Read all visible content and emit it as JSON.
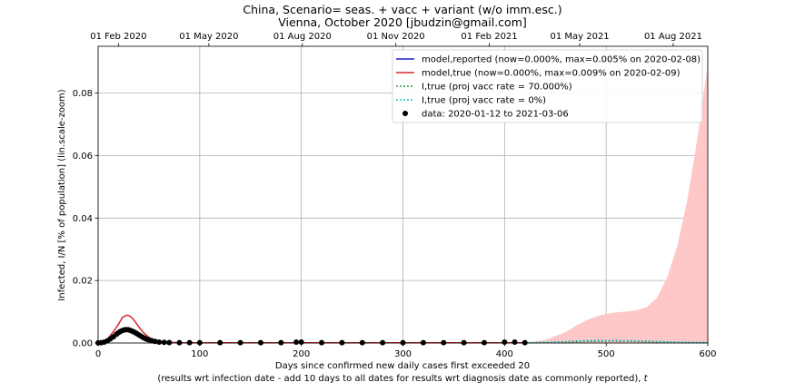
{
  "chart_data": {
    "type": "line",
    "title": "China, Scenario= seas. + vacc + variant (w/o imm.esc.)",
    "subtitle": "Vienna, October 2020 [jbudzin@gmail.com]",
    "xlabel": "Days since confirmed new daily cases first exceeded 20",
    "xlabel_note": "(results wrt infection date - add 10 days to all dates for results wrt diagnosis date as commonly reported), t",
    "ylabel": "Infected, I/N [% of population] (lin.scale-zoom)",
    "xlim": [
      0,
      600
    ],
    "ylim": [
      0,
      0.095
    ],
    "x_ticks": [
      0,
      100,
      200,
      300,
      400,
      500,
      600
    ],
    "x_tick_labels": [
      "0",
      "100",
      "200",
      "300",
      "400",
      "500",
      "600"
    ],
    "y_ticks": [
      0,
      0.02,
      0.04,
      0.06,
      0.08
    ],
    "y_tick_labels": [
      "0.00",
      "0.02",
      "0.04",
      "0.06",
      "0.08"
    ],
    "top_axis": {
      "tick_x": [
        20,
        109,
        201,
        293,
        385,
        474,
        566
      ],
      "tick_labels": [
        "01 Feb 2020",
        "01 May 2020",
        "01 Aug 2020",
        "01 Nov 2020",
        "01 Feb 2021",
        "01 May 2021",
        "01 Aug 2021"
      ]
    },
    "grid": true,
    "legend_position": "top-right",
    "legend": [
      {
        "label": "model,reported (now=0.000%, max=0.005% on 2020-02-08)",
        "style": "solid",
        "color": "#1f1fbf"
      },
      {
        "label": "model,true (now=0.000%, max=0.009% on 2020-02-09)",
        "style": "solid",
        "color": "#d62728"
      },
      {
        "label": "I,true (proj vacc rate = 70.000%)",
        "style": "dotted",
        "color": "#2ca02c"
      },
      {
        "label": "I,true (proj vacc rate = 0%)",
        "style": "dotted",
        "color": "#17becf"
      },
      {
        "label": "data: 2020-01-12 to 2021-03-06",
        "style": "marker",
        "color": "#000000"
      }
    ],
    "series": [
      {
        "name": "model,reported (now=0.000%, max=0.005% on 2020-02-08)",
        "color": "#1f1fbf",
        "x": [
          0,
          5,
          10,
          15,
          20,
          25,
          28,
          32,
          36,
          40,
          45,
          50,
          55,
          60,
          70,
          80,
          100,
          150,
          200,
          250,
          300,
          350,
          400,
          420
        ],
        "y": [
          0,
          0.0002,
          0.0008,
          0.0018,
          0.0032,
          0.0044,
          0.0046,
          0.0044,
          0.0038,
          0.003,
          0.002,
          0.0012,
          0.0007,
          0.0004,
          0.0002,
          0.0001,
          6e-05,
          5e-05,
          8e-05,
          6e-05,
          5e-05,
          6e-05,
          6e-05,
          5e-05
        ]
      },
      {
        "name": "model,true (now=0.000%, max=0.009% on 2020-02-09)",
        "color": "#d62728",
        "x": [
          0,
          5,
          10,
          15,
          20,
          24,
          28,
          30,
          33,
          36,
          40,
          45,
          50,
          55,
          60,
          70,
          80,
          100,
          150,
          200,
          250,
          300,
          350,
          400,
          420
        ],
        "y": [
          0,
          0.0004,
          0.0016,
          0.0036,
          0.006,
          0.0082,
          0.0089,
          0.0088,
          0.0082,
          0.007,
          0.0052,
          0.0032,
          0.0018,
          0.001,
          0.0005,
          0.0002,
          0.0001,
          8e-05,
          8e-05,
          0.0001,
          0.0001,
          0.0001,
          0.0001,
          0.0001,
          8e-05
        ]
      },
      {
        "name": "I,true (proj vacc rate = 70.000%)",
        "color": "#2ca02c",
        "x": [
          420,
          450,
          480,
          510,
          540,
          570,
          600
        ],
        "y": [
          8e-05,
          0.0002,
          0.0005,
          0.0006,
          0.0004,
          0.0002,
          0.0001
        ]
      },
      {
        "name": "I,true (proj vacc rate = 0%)",
        "color": "#17becf",
        "x": [
          420,
          450,
          480,
          510,
          540,
          570,
          600
        ],
        "y": [
          8e-05,
          0.0003,
          0.0008,
          0.0008,
          0.0006,
          0.0003,
          0.0002
        ]
      }
    ],
    "uncertainty_band": {
      "color": "#ffc8c8",
      "x": [
        420,
        440,
        460,
        470,
        480,
        490,
        500,
        510,
        520,
        530,
        540,
        550,
        560,
        570,
        580,
        590,
        600
      ],
      "upper": [
        0,
        0.001,
        0.0035,
        0.0055,
        0.0072,
        0.0085,
        0.0093,
        0.0098,
        0.0101,
        0.0105,
        0.0115,
        0.0145,
        0.021,
        0.031,
        0.046,
        0.066,
        0.089
      ],
      "lower": [
        0,
        0,
        0,
        0,
        0,
        0,
        0,
        0,
        0,
        0,
        0,
        0,
        0,
        0,
        0,
        0,
        0
      ]
    },
    "data_points": {
      "label": "data: 2020-01-12 to 2021-03-06",
      "color": "#000000",
      "x": [
        0,
        3,
        6,
        9,
        12,
        15,
        18,
        20,
        22,
        24,
        26,
        28,
        30,
        32,
        34,
        36,
        38,
        40,
        42,
        44,
        46,
        48,
        50,
        53,
        56,
        60,
        65,
        70,
        80,
        90,
        100,
        120,
        140,
        160,
        180,
        195,
        200,
        220,
        240,
        260,
        280,
        300,
        320,
        340,
        360,
        380,
        400,
        410,
        420
      ],
      "y": [
        5e-05,
        0.0001,
        0.0003,
        0.0007,
        0.0013,
        0.002,
        0.0028,
        0.0033,
        0.0037,
        0.004,
        0.0042,
        0.0043,
        0.0042,
        0.004,
        0.0037,
        0.0034,
        0.003,
        0.0026,
        0.0022,
        0.0018,
        0.0015,
        0.0012,
        0.001,
        0.0007,
        0.0005,
        0.0003,
        0.0002,
        0.00015,
        0.0001,
        0.0001,
        0.0001,
        0.0001,
        0.0001,
        0.0001,
        0.0001,
        0.0003,
        0.0003,
        0.0001,
        0.0001,
        0.0001,
        0.0001,
        0.0001,
        0.0001,
        0.0001,
        0.0001,
        0.0001,
        0.0003,
        0.0003,
        0.0001
      ]
    }
  }
}
